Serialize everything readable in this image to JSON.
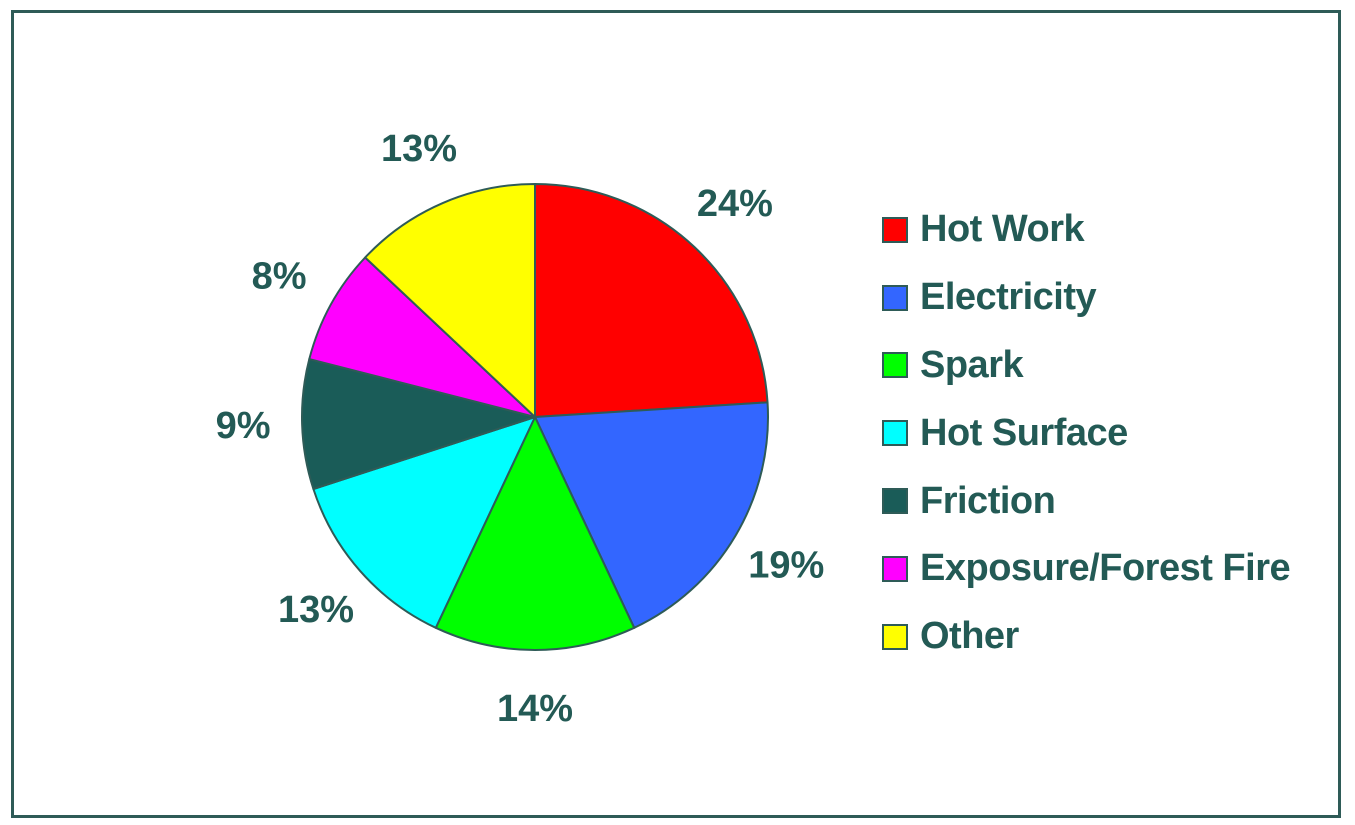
{
  "chart_data": {
    "type": "pie",
    "title": "",
    "categories": [
      "Hot Work",
      "Electricity",
      "Spark",
      "Hot Surface",
      "Friction",
      "Exposure/Forest Fire",
      "Other"
    ],
    "values": [
      24,
      19,
      14,
      13,
      9,
      8,
      13
    ],
    "value_labels": [
      "24%",
      "19%",
      "14%",
      "13%",
      "9%",
      "8%",
      "13%"
    ],
    "colors": [
      "#ff0000",
      "#3366ff",
      "#00ff00",
      "#00ffff",
      "#1a5c58",
      "#ff00ff",
      "#ffff00"
    ],
    "legend_position": "right",
    "start_angle": "12 o'clock",
    "direction": "clockwise"
  }
}
